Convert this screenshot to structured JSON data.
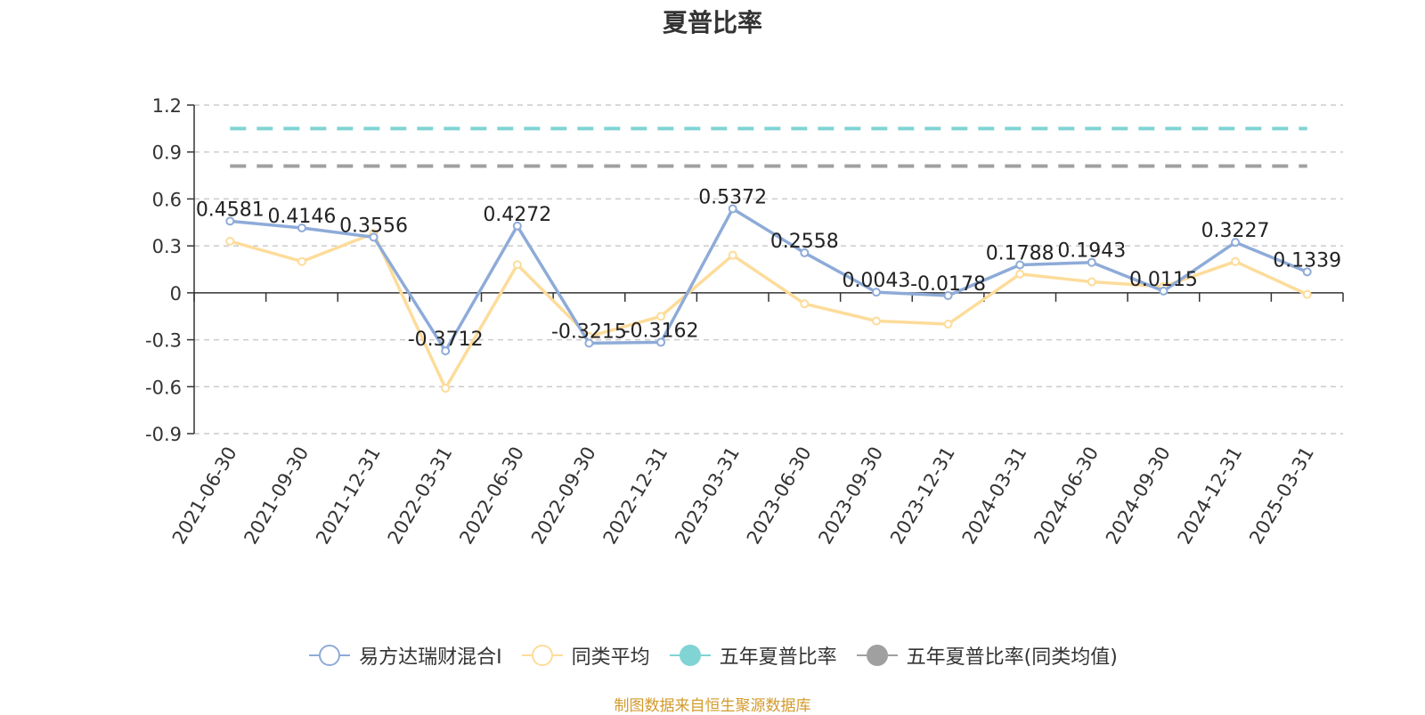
{
  "chart_data": {
    "type": "line",
    "title": "夏普比率",
    "xlabel": "",
    "ylabel": "",
    "categories": [
      "2021-06-30",
      "2021-09-30",
      "2021-12-31",
      "2022-03-31",
      "2022-06-30",
      "2022-09-30",
      "2022-12-31",
      "2023-03-31",
      "2023-06-30",
      "2023-09-30",
      "2023-12-31",
      "2024-03-31",
      "2024-06-30",
      "2024-09-30",
      "2024-12-31",
      "2025-03-31"
    ],
    "ylim": [
      -0.9,
      1.2
    ],
    "yticks": [
      1.2,
      0.9,
      0.6,
      0.3,
      0,
      -0.3,
      -0.6,
      -0.9
    ],
    "ytick_labels": [
      "1.2",
      "0.9",
      "0.6",
      "0.3",
      "0",
      "-0.3",
      "-0.6",
      "-0.9"
    ],
    "grid": "horizontal dashed",
    "legend_position": "bottom",
    "series": [
      {
        "name": "易方达瑞财混合I",
        "color": "#8eabd8",
        "values": [
          0.4581,
          0.4146,
          0.3556,
          -0.3712,
          0.4272,
          -0.3215,
          -0.3162,
          0.5372,
          0.2558,
          0.0043,
          -0.0178,
          0.1788,
          0.1943,
          0.0115,
          0.3227,
          0.1339
        ],
        "labels": [
          "0.4581",
          "0.4146",
          "0.3556",
          "-0.3712",
          "0.4272",
          "-0.3215",
          "-0.3162",
          "0.5372",
          "0.2558",
          "0.0043",
          "-0.0178",
          "0.1788",
          "0.1943",
          "0.0115",
          "0.3227",
          "0.1339"
        ]
      },
      {
        "name": "同类平均",
        "color": "#fddc9a",
        "values": [
          0.33,
          0.2,
          0.38,
          -0.61,
          0.18,
          -0.28,
          -0.15,
          0.24,
          -0.07,
          -0.18,
          -0.2,
          0.12,
          0.07,
          0.04,
          0.2,
          -0.01
        ]
      },
      {
        "name": "五年夏普比率",
        "color": "#80d4d4",
        "constant": 1.05
      },
      {
        "name": "五年夏普比率(同类均值)",
        "color": "#a0a0a0",
        "constant": 0.81
      }
    ],
    "source": "制图数据来自恒生聚源数据库"
  }
}
